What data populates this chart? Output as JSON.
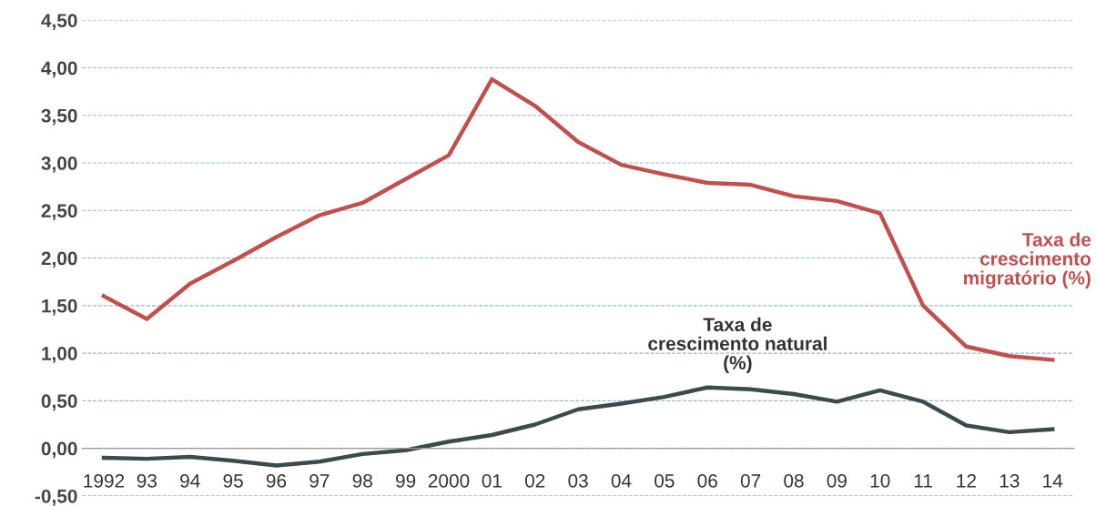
{
  "chart_data": {
    "type": "line",
    "categories": [
      "1992",
      "93",
      "94",
      "95",
      "96",
      "97",
      "98",
      "99",
      "2000",
      "01",
      "02",
      "03",
      "04",
      "05",
      "06",
      "07",
      "08",
      "09",
      "10",
      "11",
      "12",
      "13",
      "14"
    ],
    "series": [
      {
        "name": "Taxa de crescimento migratório (%)",
        "color": "#c0504d",
        "values": [
          1.6,
          1.36,
          1.73,
          1.97,
          2.22,
          2.45,
          2.58,
          2.83,
          3.08,
          3.88,
          3.6,
          3.22,
          2.98,
          2.88,
          2.79,
          2.77,
          2.65,
          2.6,
          2.47,
          1.5,
          1.07,
          0.97,
          0.93
        ]
      },
      {
        "name": "Taxa de crescimento natural (%)",
        "color": "#3b4a4d",
        "values": [
          -0.1,
          -0.11,
          -0.09,
          -0.13,
          -0.18,
          -0.14,
          -0.06,
          -0.02,
          0.07,
          0.14,
          0.25,
          0.41,
          0.47,
          0.54,
          0.64,
          0.62,
          0.57,
          0.49,
          0.61,
          0.49,
          0.24,
          0.17,
          0.2
        ]
      }
    ],
    "ylim": [
      -0.5,
      4.5
    ],
    "yticks": [
      {
        "value": -0.5,
        "label": "-0,50"
      },
      {
        "value": 0,
        "label": "0,00"
      },
      {
        "value": 0.5,
        "label": "0,50"
      },
      {
        "value": 1,
        "label": "1,00"
      },
      {
        "value": 1.5,
        "label": "1,50"
      },
      {
        "value": 2,
        "label": "2,00"
      },
      {
        "value": 2.5,
        "label": "2,50"
      },
      {
        "value": 3,
        "label": "3,00"
      },
      {
        "value": 3.5,
        "label": "3,50"
      },
      {
        "value": 4,
        "label": "4,00"
      },
      {
        "value": 4.5,
        "label": "4,50"
      }
    ],
    "grid": "y",
    "marker": "none",
    "line_style": "solid",
    "legend": false
  }
}
